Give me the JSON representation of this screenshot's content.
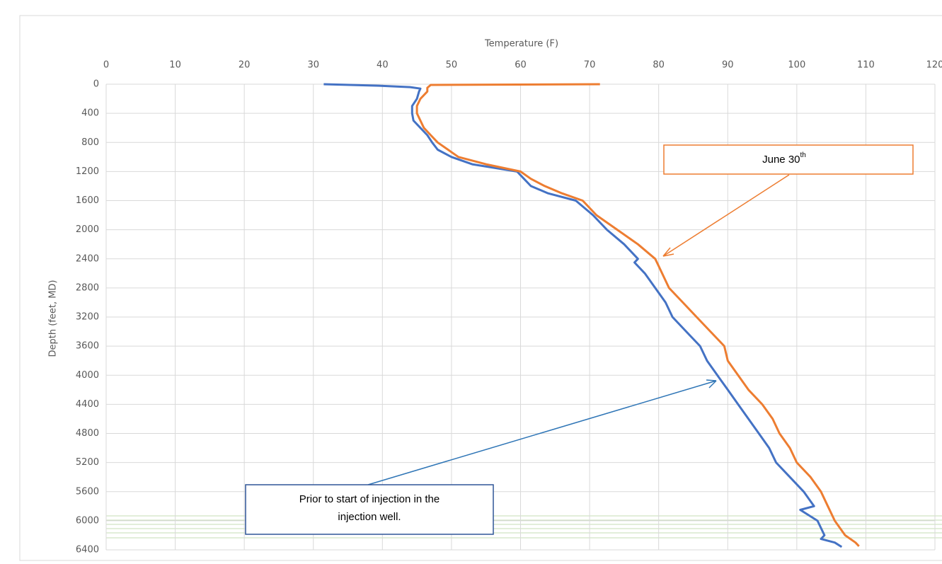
{
  "chart_data": {
    "type": "line",
    "title": "Temperature (F)",
    "y_label": "Depth (feet, MD)",
    "xlim": [
      0,
      120
    ],
    "xticks": [
      0,
      10,
      20,
      30,
      40,
      50,
      60,
      70,
      80,
      90,
      100,
      110,
      120
    ],
    "ylim": [
      0,
      6400
    ],
    "yticks": [
      0,
      400,
      800,
      1200,
      1600,
      2000,
      2400,
      2800,
      3200,
      3600,
      4000,
      4400,
      4800,
      5200,
      5600,
      6000,
      6400
    ],
    "y_reversed": true,
    "x_axis_position": "top",
    "grid": true,
    "series": [
      {
        "color": "#4472c4",
        "x": [
          31.5,
          39.5,
          44,
          45.5,
          45.3,
          45,
          44.3,
          44.3,
          44.5,
          45.5,
          46.5,
          47.2,
          48,
          50,
          53,
          59.5,
          60.5,
          61.5,
          64,
          68,
          70.5,
          72.5,
          75,
          77,
          76.5,
          78,
          79.5,
          81,
          82,
          84,
          86,
          87,
          88.5,
          90,
          91.5,
          93,
          94.5,
          96,
          97,
          99,
          101,
          102.5,
          100.5,
          103,
          104,
          103.5,
          105.5,
          106.5
        ],
        "values": [
          0,
          20,
          40,
          60,
          100,
          200,
          300,
          400,
          500,
          600,
          700,
          800,
          900,
          1000,
          1100,
          1200,
          1300,
          1400,
          1500,
          1600,
          1800,
          2000,
          2200,
          2400,
          2450,
          2600,
          2800,
          3000,
          3200,
          3400,
          3600,
          3800,
          4000,
          4200,
          4400,
          4600,
          4800,
          5000,
          5200,
          5400,
          5600,
          5800,
          5850,
          6000,
          6200,
          6250,
          6300,
          6360
        ]
      },
      {
        "color": "#ed7d31",
        "x": [
          71.5,
          47,
          46.5,
          46.5,
          45.5,
          45,
          45,
          45.5,
          46,
          47,
          48,
          49.5,
          51,
          55,
          60,
          61.5,
          63.5,
          66,
          69,
          71,
          74,
          77,
          79.5,
          80,
          81.5,
          83.5,
          85.5,
          87.5,
          89.5,
          90,
          91.5,
          93,
          95,
          96.5,
          97.5,
          99,
          100,
          102,
          103.5,
          104.5,
          105.5,
          107,
          108.5,
          109
        ],
        "values": [
          0,
          10,
          50,
          100,
          200,
          300,
          400,
          500,
          600,
          700,
          800,
          900,
          1000,
          1100,
          1200,
          1300,
          1400,
          1500,
          1600,
          1800,
          2000,
          2200,
          2400,
          2500,
          2800,
          3000,
          3200,
          3400,
          3600,
          3800,
          4000,
          4200,
          4400,
          4600,
          4800,
          5000,
          5200,
          5400,
          5600,
          5800,
          6000,
          6200,
          6300,
          6350
        ]
      }
    ],
    "annotations": [
      {
        "text": "June 30",
        "superscript": "th"
      },
      {
        "lines": [
          "Prior to start of injection in the",
          "injection well."
        ]
      }
    ]
  }
}
